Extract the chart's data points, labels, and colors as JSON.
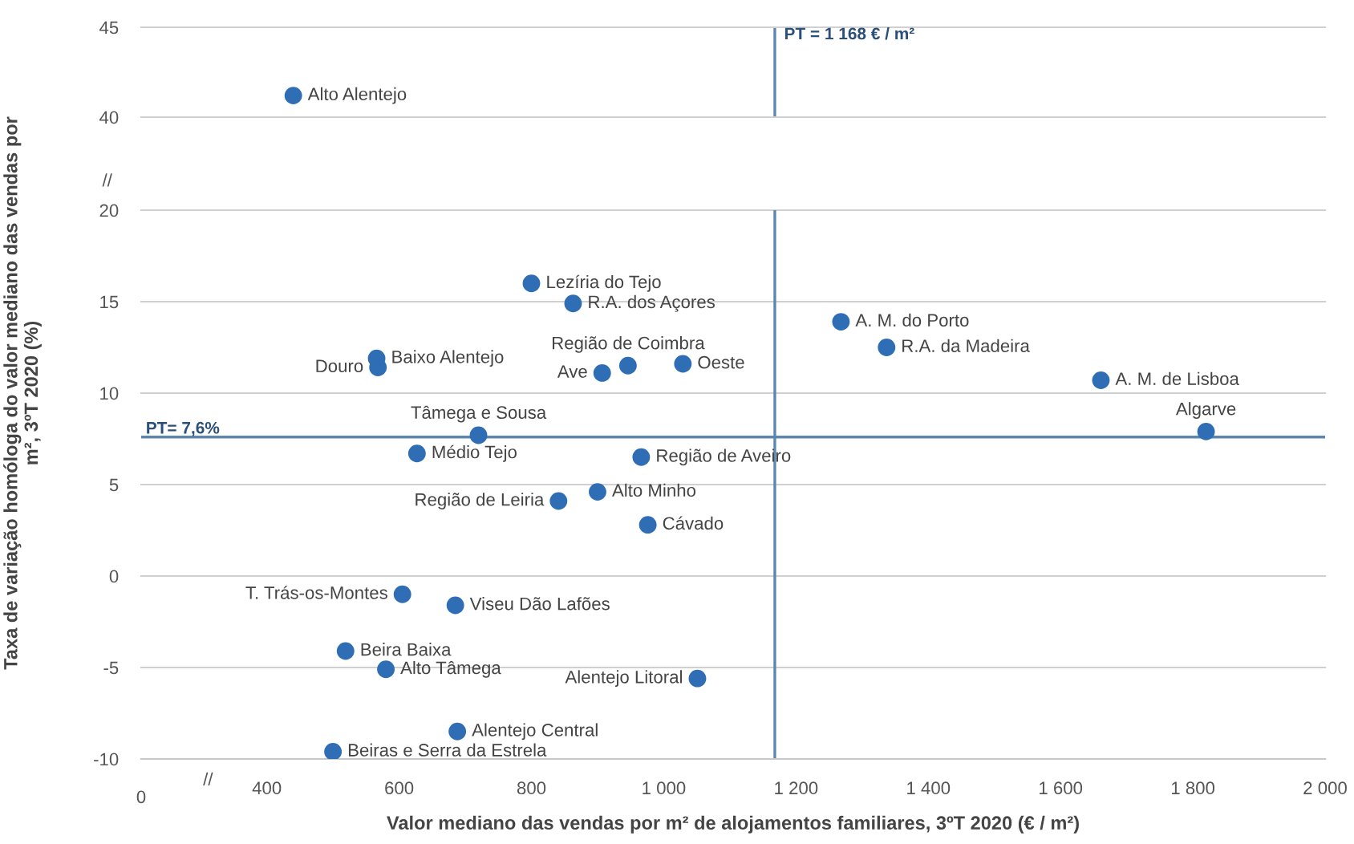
{
  "chart_data": [
    {
      "type": "scatter",
      "x": [
        440
      ],
      "values": [
        41.2
      ],
      "color": "#2f6eb5",
      "marker": "circle",
      "xlim": [
        210,
        2000
      ],
      "ylim": [
        40,
        45
      ],
      "yticks": [
        40,
        45
      ],
      "tick_labels": "y",
      "ylabel": "Taxa de variação homóloga do valor mediano das vendas por\nm², 3ºT 2020 (%)",
      "ref_lines": [
        {
          "axis": "x",
          "value": 1168,
          "label": "PT = 1 168 € / m²",
          "color": "#5b86b0"
        }
      ],
      "annotations": [
        "//",
        {
          "text": "Alto Alentejo",
          "x": 440,
          "y": 41.2
        }
      ]
    },
    {
      "type": "scatter",
      "x": [
        800,
        863,
        1268,
        1337,
        566,
        568,
        946,
        907,
        1029,
        1661,
        1820,
        720,
        627,
        966,
        900,
        841,
        976,
        605,
        685,
        519,
        580,
        1051,
        688,
        500
      ],
      "values": [
        16.0,
        14.9,
        13.9,
        12.5,
        11.9,
        11.4,
        11.5,
        11.1,
        11.6,
        10.7,
        7.9,
        7.7,
        6.7,
        6.5,
        4.6,
        4.1,
        2.8,
        -1.0,
        -1.6,
        -4.1,
        -5.1,
        -5.6,
        -8.5,
        -9.6
      ],
      "color": "#2f6eb5",
      "marker": "circle",
      "xlim": [
        210,
        2000
      ],
      "ylim": [
        -10,
        20
      ],
      "xticks": [
        400,
        600,
        800,
        {
          "value": 1000,
          "label": "1 000"
        },
        {
          "value": 1200,
          "label": "1 200"
        },
        {
          "value": 1400,
          "label": "1 400"
        },
        {
          "value": 1600,
          "label": "1 600"
        },
        {
          "value": 1800,
          "label": "1 800"
        },
        {
          "value": 2000,
          "label": "2 000"
        }
      ],
      "yticks": [
        -10,
        -5,
        0,
        5,
        10,
        15,
        20
      ],
      "grid": "y",
      "xlabel": "Valor mediano das vendas por m² de alojamentos familiares, 3ºT 2020 (€ / m²)",
      "ref_lines": [
        {
          "axis": "x",
          "value": 1168,
          "color": "#5b86b0"
        },
        {
          "axis": "y",
          "value": 7.6,
          "label": "PT= 7,6%",
          "color": "#5b86b0"
        }
      ],
      "annotations": [
        "0",
        "//",
        {
          "text": "Lezíria do Tejo",
          "x": 800,
          "y": 16.0
        },
        {
          "text": "R.A. dos Açores",
          "x": 863,
          "y": 14.9
        },
        {
          "text": "A. M. do Porto",
          "x": 1268,
          "y": 13.9
        },
        {
          "text": "R.A. da Madeira",
          "x": 1337,
          "y": 12.5
        },
        {
          "text": "Baixo Alentejo",
          "x": 566,
          "y": 11.9
        },
        {
          "text": "Douro",
          "x": 568,
          "y": 11.4
        },
        {
          "text": "Região de Coimbra",
          "x": 946,
          "y": 11.5
        },
        {
          "text": "Ave",
          "x": 907,
          "y": 11.1
        },
        {
          "text": "Oeste",
          "x": 1029,
          "y": 11.6
        },
        {
          "text": "A. M. de Lisboa",
          "x": 1661,
          "y": 10.7
        },
        {
          "text": "Algarve",
          "x": 1820,
          "y": 7.9
        },
        {
          "text": "Tâmega e Sousa",
          "x": 720,
          "y": 7.7
        },
        {
          "text": "Médio Tejo",
          "x": 627,
          "y": 6.7
        },
        {
          "text": "Região de Aveiro",
          "x": 966,
          "y": 6.5
        },
        {
          "text": "Alto Minho",
          "x": 900,
          "y": 4.6
        },
        {
          "text": "Região de Leiria",
          "x": 841,
          "y": 4.1
        },
        {
          "text": "Cávado",
          "x": 976,
          "y": 2.8
        },
        {
          "text": "T. Trás-os-Montes",
          "x": 605,
          "y": -1.0
        },
        {
          "text": "Viseu Dão Lafões",
          "x": 685,
          "y": -1.6
        },
        {
          "text": "Beira Baixa",
          "x": 519,
          "y": -4.1
        },
        {
          "text": "Alto Tâmega",
          "x": 580,
          "y": -5.1
        },
        {
          "text": "Alentejo Litoral",
          "x": 1051,
          "y": -5.6
        },
        {
          "text": "Alentejo Central",
          "x": 688,
          "y": -8.5
        },
        {
          "text": "Beiras e Serra da Estrela",
          "x": 500,
          "y": -9.6
        }
      ]
    }
  ]
}
